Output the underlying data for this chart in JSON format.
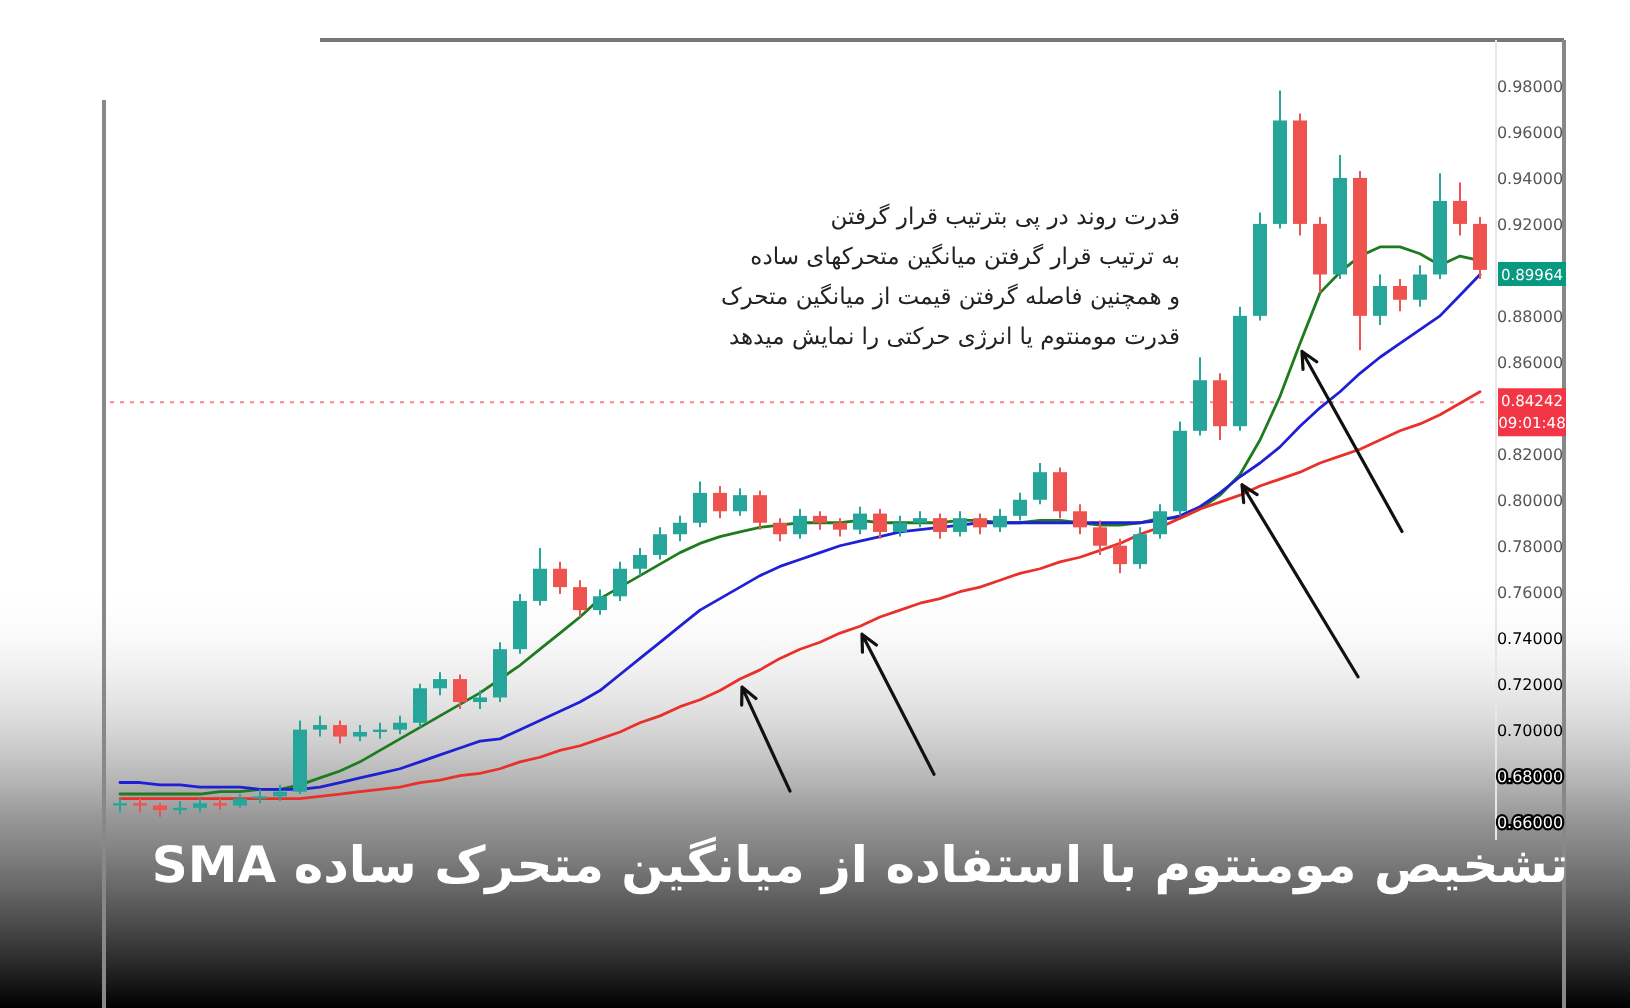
{
  "chart_data": {
    "type": "candlestick",
    "title": "تشخیص مومنتوم با استفاده از میانگین متحرک ساده SMA",
    "categories": [
      null,
      null,
      null,
      null,
      null,
      null,
      null,
      null,
      null,
      null,
      null,
      null,
      null,
      null,
      null,
      null,
      null,
      null,
      null,
      null,
      null,
      null,
      null,
      null,
      null,
      null,
      null,
      null,
      null,
      null,
      null,
      null,
      null,
      null,
      null,
      null,
      null,
      null,
      null,
      null,
      null,
      null,
      null,
      null,
      null,
      null,
      null,
      null,
      null,
      null,
      null,
      null,
      null,
      null,
      null,
      null,
      null,
      null,
      null,
      null,
      null,
      null,
      null,
      null,
      null,
      null,
      null,
      null,
      null
    ],
    "ohlc": [
      [
        0.667,
        0.67,
        0.664,
        0.668
      ],
      [
        0.668,
        0.67,
        0.664,
        0.667
      ],
      [
        0.667,
        0.668,
        0.662,
        0.665
      ],
      [
        0.665,
        0.669,
        0.663,
        0.666
      ],
      [
        0.666,
        0.67,
        0.664,
        0.668
      ],
      [
        0.668,
        0.67,
        0.665,
        0.667
      ],
      [
        0.667,
        0.672,
        0.666,
        0.67
      ],
      [
        0.67,
        0.674,
        0.668,
        0.671
      ],
      [
        0.671,
        0.676,
        0.669,
        0.673
      ],
      [
        0.673,
        0.704,
        0.672,
        0.7
      ],
      [
        0.7,
        0.706,
        0.697,
        0.702
      ],
      [
        0.702,
        0.704,
        0.694,
        0.697
      ],
      [
        0.697,
        0.702,
        0.695,
        0.699
      ],
      [
        0.699,
        0.703,
        0.696,
        0.7
      ],
      [
        0.7,
        0.706,
        0.698,
        0.703
      ],
      [
        0.703,
        0.72,
        0.701,
        0.718
      ],
      [
        0.718,
        0.725,
        0.715,
        0.722
      ],
      [
        0.722,
        0.724,
        0.709,
        0.712
      ],
      [
        0.712,
        0.717,
        0.709,
        0.714
      ],
      [
        0.714,
        0.738,
        0.712,
        0.735
      ],
      [
        0.735,
        0.759,
        0.733,
        0.756
      ],
      [
        0.756,
        0.779,
        0.754,
        0.77
      ],
      [
        0.77,
        0.773,
        0.759,
        0.762
      ],
      [
        0.762,
        0.765,
        0.749,
        0.752
      ],
      [
        0.752,
        0.761,
        0.75,
        0.758
      ],
      [
        0.758,
        0.773,
        0.756,
        0.77
      ],
      [
        0.77,
        0.779,
        0.767,
        0.776
      ],
      [
        0.776,
        0.788,
        0.774,
        0.785
      ],
      [
        0.785,
        0.793,
        0.782,
        0.79
      ],
      [
        0.79,
        0.808,
        0.788,
        0.803
      ],
      [
        0.803,
        0.806,
        0.792,
        0.795
      ],
      [
        0.795,
        0.805,
        0.793,
        0.802
      ],
      [
        0.802,
        0.804,
        0.787,
        0.79
      ],
      [
        0.79,
        0.792,
        0.782,
        0.785
      ],
      [
        0.785,
        0.796,
        0.783,
        0.793
      ],
      [
        0.793,
        0.795,
        0.787,
        0.79
      ],
      [
        0.79,
        0.792,
        0.784,
        0.787
      ],
      [
        0.787,
        0.797,
        0.785,
        0.794
      ],
      [
        0.794,
        0.796,
        0.783,
        0.786
      ],
      [
        0.786,
        0.793,
        0.784,
        0.79
      ],
      [
        0.79,
        0.795,
        0.788,
        0.792
      ],
      [
        0.792,
        0.794,
        0.783,
        0.786
      ],
      [
        0.786,
        0.795,
        0.784,
        0.792
      ],
      [
        0.792,
        0.794,
        0.785,
        0.788
      ],
      [
        0.788,
        0.796,
        0.786,
        0.793
      ],
      [
        0.793,
        0.803,
        0.791,
        0.8
      ],
      [
        0.8,
        0.816,
        0.798,
        0.812
      ],
      [
        0.812,
        0.814,
        0.792,
        0.795
      ],
      [
        0.795,
        0.798,
        0.785,
        0.788
      ],
      [
        0.788,
        0.791,
        0.776,
        0.78
      ],
      [
        0.78,
        0.783,
        0.768,
        0.772
      ],
      [
        0.772,
        0.788,
        0.77,
        0.785
      ],
      [
        0.785,
        0.798,
        0.783,
        0.795
      ],
      [
        0.795,
        0.834,
        0.793,
        0.83
      ],
      [
        0.83,
        0.862,
        0.828,
        0.852
      ],
      [
        0.852,
        0.855,
        0.826,
        0.832
      ],
      [
        0.832,
        0.884,
        0.83,
        0.88
      ],
      [
        0.88,
        0.925,
        0.878,
        0.92
      ],
      [
        0.92,
        0.978,
        0.918,
        0.965
      ],
      [
        0.965,
        0.968,
        0.915,
        0.92
      ],
      [
        0.92,
        0.923,
        0.89,
        0.898
      ],
      [
        0.898,
        0.95,
        0.896,
        0.94
      ],
      [
        0.94,
        0.943,
        0.865,
        0.88
      ],
      [
        0.88,
        0.898,
        0.876,
        0.893
      ],
      [
        0.893,
        0.896,
        0.882,
        0.887
      ],
      [
        0.887,
        0.902,
        0.884,
        0.898
      ],
      [
        0.898,
        0.942,
        0.896,
        0.93
      ],
      [
        0.93,
        0.938,
        0.915,
        0.92
      ],
      [
        0.92,
        0.923,
        0.896,
        0.9
      ]
    ],
    "series": [
      {
        "type": "line",
        "color": "#1e7b1e",
        "values": [
          0.672,
          0.672,
          0.672,
          0.672,
          0.672,
          0.673,
          0.673,
          0.674,
          0.674,
          0.676,
          0.679,
          0.682,
          0.686,
          0.691,
          0.696,
          0.701,
          0.706,
          0.711,
          0.716,
          0.722,
          0.728,
          0.735,
          0.742,
          0.749,
          0.757,
          0.762,
          0.767,
          0.772,
          0.777,
          0.781,
          0.784,
          0.786,
          0.788,
          0.789,
          0.79,
          0.79,
          0.79,
          0.791,
          0.79,
          0.79,
          0.79,
          0.79,
          0.791,
          0.791,
          0.79,
          0.79,
          0.791,
          0.791,
          0.79,
          0.789,
          0.789,
          0.79,
          0.792,
          0.792,
          0.796,
          0.802,
          0.811,
          0.826,
          0.845,
          0.868,
          0.89,
          0.899,
          0.906,
          0.91,
          0.91,
          0.907,
          0.902,
          0.906,
          0.904
        ]
      },
      {
        "type": "line",
        "color": "#1f1fd6",
        "values": [
          0.677,
          0.677,
          0.676,
          0.676,
          0.675,
          0.675,
          0.675,
          0.674,
          0.674,
          0.674,
          0.675,
          0.677,
          0.679,
          0.681,
          0.683,
          0.686,
          0.689,
          0.692,
          0.695,
          0.696,
          0.7,
          0.704,
          0.708,
          0.712,
          0.717,
          0.724,
          0.731,
          0.738,
          0.745,
          0.752,
          0.757,
          0.762,
          0.767,
          0.771,
          0.774,
          0.777,
          0.78,
          0.782,
          0.784,
          0.786,
          0.787,
          0.788,
          0.789,
          0.79,
          0.79,
          0.79,
          0.79,
          0.79,
          0.79,
          0.79,
          0.79,
          0.79,
          0.791,
          0.793,
          0.797,
          0.803,
          0.81,
          0.816,
          0.823,
          0.832,
          0.84,
          0.847,
          0.855,
          0.862,
          0.868,
          0.874,
          0.88,
          0.889,
          0.898
        ]
      },
      {
        "type": "line",
        "color": "#e8312a",
        "values": [
          0.67,
          0.67,
          0.67,
          0.67,
          0.67,
          0.67,
          0.67,
          0.67,
          0.67,
          0.67,
          0.671,
          0.672,
          0.673,
          0.674,
          0.675,
          0.677,
          0.678,
          0.68,
          0.681,
          0.683,
          0.686,
          0.688,
          0.691,
          0.693,
          0.696,
          0.699,
          0.703,
          0.706,
          0.71,
          0.713,
          0.717,
          0.722,
          0.726,
          0.731,
          0.735,
          0.738,
          0.742,
          0.745,
          0.749,
          0.752,
          0.755,
          0.757,
          0.76,
          0.762,
          0.765,
          0.768,
          0.77,
          0.773,
          0.775,
          0.778,
          0.781,
          0.785,
          0.788,
          0.792,
          0.796,
          0.799,
          0.802,
          0.806,
          0.809,
          0.812,
          0.816,
          0.819,
          0.822,
          0.826,
          0.83,
          0.833,
          0.837,
          0.842,
          0.847
        ]
      }
    ],
    "ylim": [
      0.652,
      1.0
    ],
    "yticks": [
      {
        "value": 0.66,
        "label": "0.66000"
      },
      {
        "value": 0.68,
        "label": "0.68000"
      },
      {
        "value": 0.7,
        "label": "0.70000"
      },
      {
        "value": 0.72,
        "label": "0.72000"
      },
      {
        "value": 0.74,
        "label": "0.74000"
      },
      {
        "value": 0.76,
        "label": "0.76000"
      },
      {
        "value": 0.78,
        "label": "0.78000"
      },
      {
        "value": 0.8,
        "label": "0.80000"
      },
      {
        "value": 0.82,
        "label": "0.82000"
      },
      {
        "value": 0.86,
        "label": "0.86000"
      },
      {
        "value": 0.88,
        "label": "0.88000"
      },
      {
        "value": 0.92,
        "label": "0.92000"
      },
      {
        "value": 0.94,
        "label": "0.94000"
      },
      {
        "value": 0.96,
        "label": "0.96000"
      },
      {
        "value": 0.98,
        "label": "0.98000"
      }
    ],
    "tick_labels": "y",
    "ref_lines": [
      {
        "axis": "y",
        "value": 0.84242,
        "label": "0.84242\n09:01:48",
        "color": "#f23645",
        "line_style": "dotted"
      }
    ],
    "annotations": [
      "قدرت روند در پی بترتیب قرار گرفتن",
      "به ترتیب قرار گرفتن میانگین متحرکهای ساده",
      "و  همچنین فاصله گرفتن قیمت از میانگین متحرک",
      "قدرت مومنتوم یا انرژی حرکتی را نمایش میدهد",
      "0.89964"
    ]
  }
}
